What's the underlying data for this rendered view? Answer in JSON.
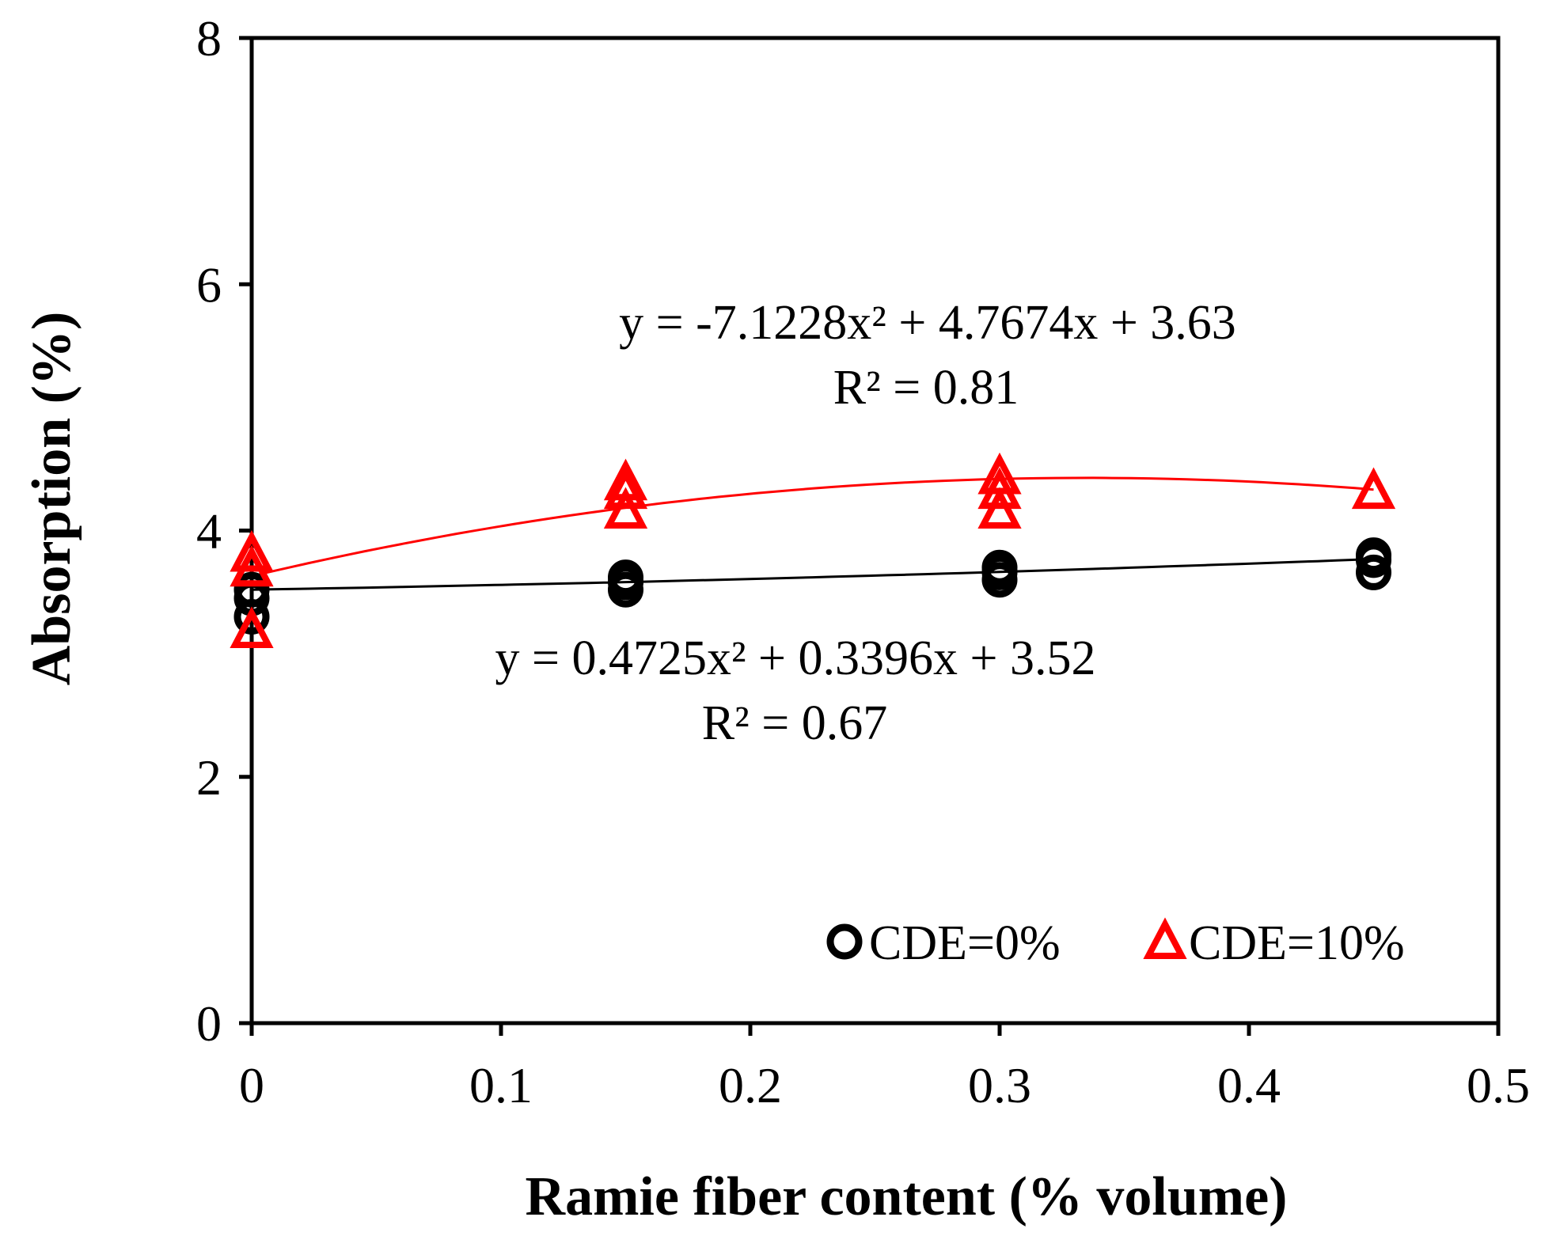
{
  "chart_data": {
    "type": "scatter",
    "title": "",
    "xlabel": "Ramie fiber content (% volume)",
    "ylabel": "Absorption (%)",
    "xlim": [
      0,
      0.5
    ],
    "ylim": [
      0,
      8
    ],
    "xticks": [
      0,
      0.1,
      0.2,
      0.3,
      0.4,
      0.5
    ],
    "xtick_labels": [
      "0",
      "0.1",
      "0.2",
      "0.3",
      "0.4",
      "0.5"
    ],
    "yticks": [
      0,
      2,
      4,
      6,
      8
    ],
    "ytick_labels": [
      "0",
      "2",
      "4",
      "6",
      "8"
    ],
    "grid": false,
    "legend_position": "bottom-right",
    "series": [
      {
        "name": "CDE=0%",
        "marker": "circle",
        "color": "#000000",
        "x": [
          0,
          0,
          0,
          0.15,
          0.15,
          0.15,
          0.3,
          0.3,
          0.3,
          0.45,
          0.45,
          0.45
        ],
        "y": [
          3.3,
          3.45,
          3.52,
          3.52,
          3.58,
          3.62,
          3.6,
          3.66,
          3.7,
          3.66,
          3.76,
          3.8
        ],
        "trendline": {
          "type": "polynomial",
          "coefficients": [
            0.4725,
            0.3396,
            3.52
          ],
          "equation_label": "y = 0.4725x² + 0.3396x + 3.52",
          "r2_label": "R² = 0.67"
        }
      },
      {
        "name": "CDE=10%",
        "marker": "triangle",
        "color": "#ff0000",
        "x": [
          0,
          0,
          0,
          0.15,
          0.15,
          0.15,
          0.3,
          0.3,
          0.3,
          0.45
        ],
        "y": [
          3.2,
          3.7,
          3.82,
          4.17,
          4.33,
          4.4,
          4.17,
          4.33,
          4.45,
          4.33
        ],
        "trendline": {
          "type": "polynomial",
          "coefficients": [
            -7.1228,
            4.7674,
            3.63
          ],
          "equation_label": "y = -7.1228x² + 4.7674x + 3.63",
          "r2_label": "R² = 0.81"
        }
      }
    ]
  }
}
